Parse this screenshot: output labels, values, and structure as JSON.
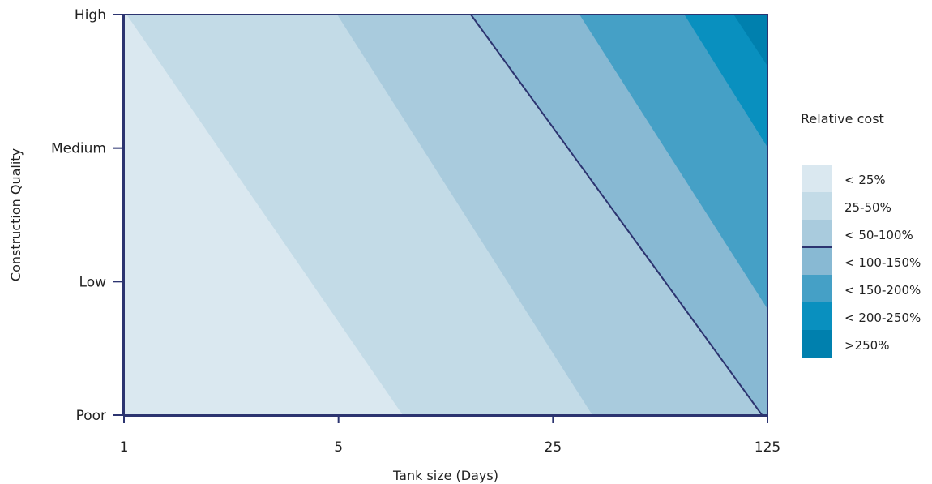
{
  "chart_data": {
    "type": "heatmap",
    "subtype": "filled-contour",
    "title": "",
    "xlabel": "Tank size (Days)",
    "ylabel": "Construction Quality",
    "x_scale": "log",
    "x_ticks": [
      1,
      5,
      25,
      125
    ],
    "x_tick_labels": [
      "1",
      "5",
      "25",
      "125"
    ],
    "xlim": [
      1,
      125
    ],
    "y_categories": [
      "Poor",
      "Low",
      "Medium",
      "High"
    ],
    "ylim": [
      "Poor",
      "High"
    ],
    "legend_title": "Relative cost",
    "legend_position": "right",
    "bands": [
      {
        "label": "< 25%",
        "color": "#dae8f0"
      },
      {
        "label": "25-50%",
        "color": "#c3dbe7"
      },
      {
        "label": "< 50-100%",
        "color": "#a9cbdd"
      },
      {
        "label": "< 100-150%",
        "color": "#88b9d3"
      },
      {
        "label": "< 150-200%",
        "color": "#45a0c6"
      },
      {
        "label": "< 200-250%",
        "color": "#0990bf"
      },
      {
        "label": ">250%",
        "color": "#0080ae"
      }
    ],
    "contour_boundaries": [
      {
        "between": [
          "< 25%",
          "25-50%"
        ],
        "at_poor_x": 8.1,
        "at_high_x": 1.02
      },
      {
        "between": [
          "25-50%",
          "< 50-100%"
        ],
        "at_poor_x": 33.6,
        "at_high_x": 4.95
      },
      {
        "between": [
          "< 50-100%",
          "< 100-150%"
        ],
        "at_poor_x": 120,
        "at_high_x": 13.5,
        "highlighted": true
      },
      {
        "between": [
          "< 100-150%",
          "< 150-200%"
        ],
        "at_poor_x": 208,
        "at_high_x": 30.5
      },
      {
        "between": [
          "< 150-200%",
          "< 200-250%"
        ],
        "at_poor_x": 440,
        "at_high_x": 67
      },
      {
        "between": [
          "< 200-250%",
          ">250%"
        ],
        "at_poor_x": 700,
        "at_high_x": 97
      }
    ],
    "grid": false
  }
}
